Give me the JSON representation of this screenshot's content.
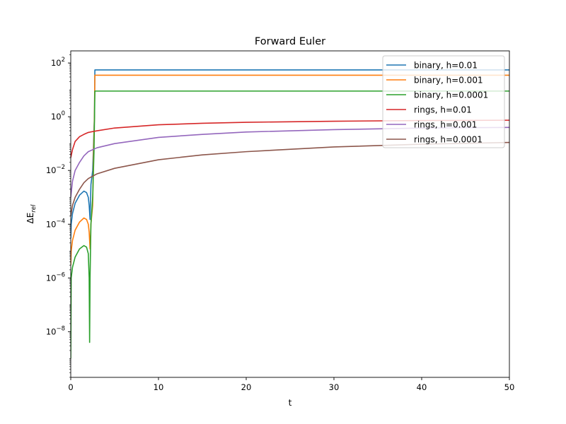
{
  "chart_data": {
    "type": "line",
    "title": "Forward Euler",
    "xlabel": "t",
    "ylabel_base": "ΔE",
    "ylabel_sub": "rel",
    "xscale": "linear",
    "yscale": "log",
    "xlim": [
      0,
      50
    ],
    "ylim_log10": [
      -9.7,
      2.45
    ],
    "xticks": [
      0,
      10,
      20,
      30,
      40,
      50
    ],
    "xtick_labels": [
      "0",
      "10",
      "20",
      "30",
      "40",
      "50"
    ],
    "yticks_exponent": [
      2,
      0,
      -2,
      -4,
      -6,
      -8
    ],
    "ytick_base": "10",
    "ytick_exponents": [
      "2",
      "0",
      "−2",
      "−4",
      "−6",
      "−8"
    ],
    "grid": false,
    "legend_position": "top-right",
    "series": [
      {
        "name": "binary, h=0.01",
        "color": "#1f77b4",
        "x": [
          0,
          0.05,
          0.2,
          0.5,
          1.0,
          1.5,
          1.8,
          2.0,
          2.1,
          2.2,
          2.3,
          2.5,
          2.6,
          2.7,
          2.75,
          50
        ],
        "y": [
          3e-05,
          0.0001,
          0.00025,
          0.0006,
          0.0012,
          0.0017,
          0.0015,
          0.001,
          0.0005,
          0.00015,
          0.003,
          0.01,
          0.1,
          1.0,
          55,
          55
        ]
      },
      {
        "name": "binary, h=0.001",
        "color": "#ff7f0e",
        "x": [
          0,
          0.05,
          0.2,
          0.5,
          1.0,
          1.5,
          1.8,
          2.0,
          2.1,
          2.2,
          2.3,
          2.5,
          2.6,
          2.7,
          2.75,
          50
        ],
        "y": [
          3e-06,
          1e-05,
          2.5e-05,
          6e-05,
          0.00012,
          0.00017,
          0.00015,
          0.0001,
          5e-05,
          1.2e-05,
          0.0001,
          0.0005,
          0.05,
          1.0,
          35,
          35
        ]
      },
      {
        "name": "binary, h=0.0001",
        "color": "#2ca02c",
        "x": [
          0,
          0.05,
          0.2,
          0.5,
          1.0,
          1.5,
          1.8,
          2.0,
          2.1,
          2.15,
          2.2,
          2.25,
          2.3,
          2.5,
          2.65,
          2.75,
          50
        ],
        "y": [
          1e-09,
          1e-06,
          2.5e-06,
          6e-06,
          1.2e-05,
          1.6e-05,
          1.4e-05,
          8e-06,
          1e-06,
          4e-09,
          1e-06,
          1e-05,
          0.0001,
          0.001,
          0.05,
          9,
          9
        ]
      },
      {
        "name": "rings, h=0.01",
        "color": "#d62728",
        "x": [
          0,
          0.2,
          0.5,
          1.0,
          1.5,
          2.0,
          3.0,
          5.0,
          10,
          15,
          20,
          30,
          40,
          50
        ],
        "y": [
          0.03,
          0.06,
          0.12,
          0.18,
          0.22,
          0.26,
          0.3,
          0.38,
          0.5,
          0.57,
          0.62,
          0.68,
          0.72,
          0.74
        ]
      },
      {
        "name": "rings, h=0.001",
        "color": "#9467bd",
        "x": [
          0,
          0.2,
          0.5,
          1.0,
          1.5,
          2.0,
          3.0,
          5.0,
          10,
          15,
          20,
          30,
          40,
          50
        ],
        "y": [
          0.001,
          0.004,
          0.01,
          0.02,
          0.035,
          0.05,
          0.07,
          0.1,
          0.17,
          0.22,
          0.27,
          0.33,
          0.38,
          0.4
        ]
      },
      {
        "name": "rings, h=0.0001",
        "color": "#8c564b",
        "x": [
          0,
          0.2,
          0.5,
          1.0,
          1.5,
          2.0,
          3.0,
          5.0,
          10,
          15,
          20,
          30,
          40,
          50
        ],
        "y": [
          0.0002,
          0.0005,
          0.001,
          0.002,
          0.0035,
          0.005,
          0.0075,
          0.012,
          0.025,
          0.038,
          0.05,
          0.075,
          0.095,
          0.11
        ]
      }
    ]
  }
}
